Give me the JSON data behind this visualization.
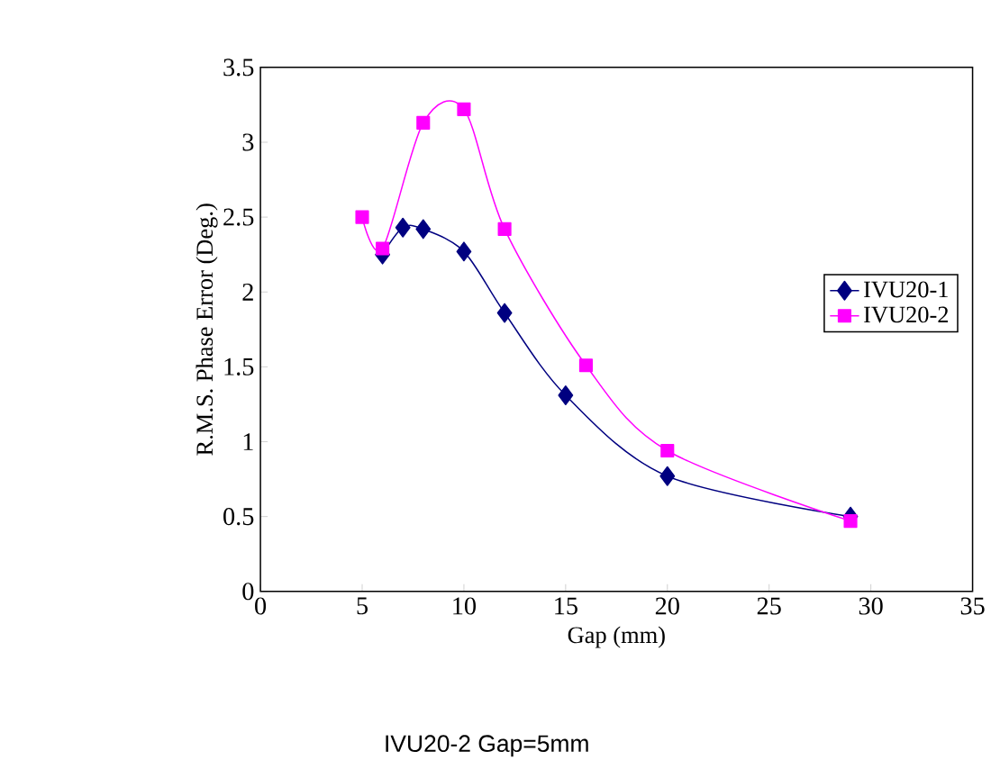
{
  "chart_data": {
    "type": "line",
    "xlabel": "Gap (mm)",
    "ylabel": "R.M.S. Phase Error (Deg.)",
    "annotations": [
      "IVU20-2 Gap=5mm"
    ],
    "xlim": [
      0,
      35
    ],
    "xticks": [
      0,
      5,
      10,
      15,
      20,
      25,
      30,
      35
    ],
    "ylim": [
      0,
      3.5
    ],
    "yticks": [
      0,
      0.5,
      1,
      1.5,
      2,
      2.5,
      3,
      3.5
    ],
    "grid": false,
    "legend": "right",
    "line_style": "solid",
    "series": [
      {
        "name": "IVU20-1",
        "color": "#000080",
        "marker": "diamond",
        "x": [
          6,
          7,
          8,
          10,
          12,
          15,
          20,
          29
        ],
        "values": [
          2.25,
          2.43,
          2.42,
          2.27,
          1.86,
          1.31,
          0.77,
          0.5
        ]
      },
      {
        "name": "IVU20-2",
        "color": "#ff00ff",
        "marker": "square",
        "x": [
          5,
          6,
          8,
          10,
          12,
          16,
          20,
          29
        ],
        "values": [
          2.5,
          2.29,
          3.13,
          3.22,
          2.42,
          1.51,
          0.94,
          0.47
        ]
      }
    ]
  }
}
